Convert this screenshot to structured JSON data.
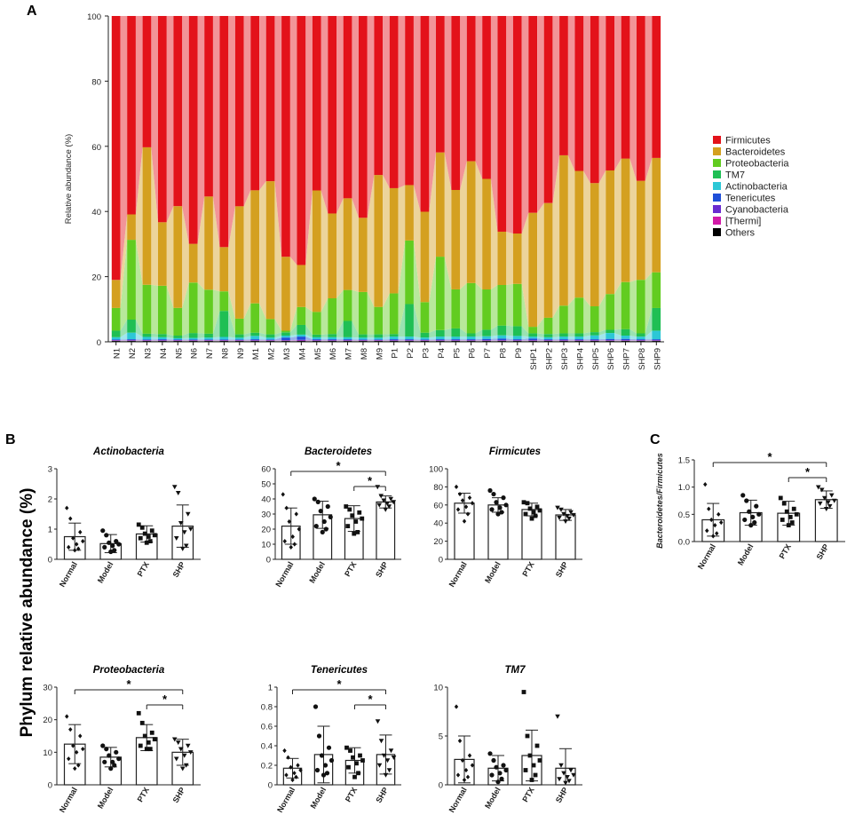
{
  "panel_labels": [
    "A",
    "B",
    "C"
  ],
  "legend": [
    {
      "name": "Firmicutes",
      "color": "#e3121a"
    },
    {
      "name": "Bacteroidetes",
      "color": "#d4a020"
    },
    {
      "name": "Proteobacteria",
      "color": "#62cc20"
    },
    {
      "name": "TM7",
      "color": "#1fbf54"
    },
    {
      "name": "Actinobacteria",
      "color": "#2cc7d6"
    },
    {
      "name": "Tenericutes",
      "color": "#1f4fd8"
    },
    {
      "name": "Cyanobacteria",
      "color": "#6a2bd0"
    },
    {
      "name": "[Thermi]",
      "color": "#d21aa8"
    },
    {
      "name": "Others",
      "color": "#000000"
    }
  ],
  "chart_data": [
    {
      "panel": "A",
      "type": "bar",
      "stacked": true,
      "ylabel": "Relative abundance (%)",
      "ylim": [
        0,
        100
      ],
      "yticks": [
        0,
        20,
        40,
        60,
        80,
        100
      ],
      "categories": [
        "N1",
        "N2",
        "N3",
        "N4",
        "N5",
        "N6",
        "N7",
        "N8",
        "N9",
        "M1",
        "M2",
        "M3",
        "M4",
        "M5",
        "M6",
        "M7",
        "M8",
        "M9",
        "P1",
        "P2",
        "P3",
        "P4",
        "P5",
        "P6",
        "P7",
        "P8",
        "P9",
        "SHP1",
        "SHP2",
        "SHP3",
        "SHP4",
        "SHP5",
        "SHP6",
        "SHP7",
        "SHP8",
        "SHP9"
      ],
      "series": [
        {
          "name": "Others",
          "values": [
            0.3,
            0.3,
            0.3,
            0.3,
            0.3,
            0.3,
            0.3,
            0.3,
            0.3,
            0.3,
            0.3,
            0.3,
            0.3,
            0.3,
            0.3,
            0.3,
            0.3,
            0.3,
            0.3,
            0.3,
            0.3,
            0.3,
            0.3,
            0.3,
            0.3,
            0.3,
            0.3,
            0.3,
            0.3,
            0.3,
            0.3,
            0.3,
            0.3,
            0.3,
            0.3,
            0.3
          ]
        },
        {
          "name": "[Thermi]",
          "values": [
            0.1,
            0.1,
            0.1,
            0.1,
            0.1,
            0.1,
            0.1,
            0.1,
            0.1,
            0.1,
            0.1,
            0.1,
            0.1,
            0.1,
            0.1,
            0.1,
            0.1,
            0.1,
            0.1,
            0.1,
            0.1,
            0.1,
            0.1,
            0.1,
            0.1,
            0.1,
            0.1,
            0.1,
            0.1,
            0.1,
            0.1,
            0.1,
            0.1,
            0.1,
            0.1,
            0.1
          ]
        },
        {
          "name": "Cyanobacteria",
          "values": [
            0.1,
            0.1,
            0.1,
            0.1,
            0.1,
            0.1,
            0.1,
            0.1,
            0.1,
            0.1,
            0.1,
            0.1,
            0.2,
            0.1,
            0.1,
            0.1,
            0.1,
            0.1,
            0.1,
            0.1,
            0.1,
            0.1,
            0.1,
            0.1,
            0.1,
            0.1,
            0.1,
            0.1,
            0.1,
            0.1,
            0.1,
            0.1,
            0.1,
            0.1,
            0.1,
            0.1
          ]
        },
        {
          "name": "Tenericutes",
          "values": [
            0.2,
            0.3,
            0.2,
            0.3,
            0.2,
            0.2,
            0.2,
            0.2,
            0.2,
            0.3,
            0.2,
            0.8,
            1.0,
            0.3,
            0.3,
            0.3,
            0.2,
            0.2,
            0.3,
            0.3,
            0.2,
            0.3,
            0.3,
            0.3,
            0.4,
            0.5,
            0.3,
            0.5,
            0.3,
            0.3,
            0.3,
            0.3,
            0.4,
            0.4,
            0.3,
            0.3
          ]
        },
        {
          "name": "Actinobacteria",
          "values": [
            0.7,
            2.0,
            0.8,
            0.6,
            0.4,
            0.5,
            0.6,
            0.8,
            0.6,
            1.0,
            0.6,
            0.6,
            0.6,
            0.6,
            0.6,
            0.6,
            0.6,
            0.6,
            0.8,
            0.8,
            0.6,
            0.8,
            0.8,
            0.8,
            0.8,
            1.0,
            1.0,
            0.6,
            0.6,
            0.8,
            0.8,
            1.2,
            1.8,
            1.0,
            0.8,
            2.6
          ]
        },
        {
          "name": "TM7",
          "values": [
            2.0,
            4.0,
            1.0,
            1.0,
            0.8,
            1.5,
            1.2,
            8.0,
            1.0,
            1.0,
            1.0,
            1.0,
            3.0,
            0.8,
            1.0,
            5.0,
            1.0,
            1.0,
            0.8,
            10.0,
            1.5,
            2.0,
            2.5,
            1.0,
            2.0,
            3.0,
            3.0,
            1.0,
            1.0,
            1.0,
            1.0,
            1.0,
            1.0,
            2.0,
            1.0,
            7.0
          ]
        },
        {
          "name": "Proteobacteria",
          "values": [
            7.0,
            24.5,
            15.0,
            14.8,
            8.5,
            15.5,
            13.5,
            6.0,
            4.8,
            9.0,
            4.7,
            0.5,
            5.5,
            7.0,
            11.0,
            9.5,
            13.0,
            8.4,
            12.5,
            19.5,
            9.4,
            22.6,
            12.0,
            15.5,
            12.4,
            12.5,
            13.0,
            2.0,
            5.0,
            8.5,
            11.0,
            8.0,
            11.0,
            14.5,
            16.5,
            11.0
          ]
        },
        {
          "name": "Bacteroidetes",
          "values": [
            8.6,
            7.8,
            42.2,
            19.5,
            31.2,
            11.9,
            28.6,
            13.6,
            34.5,
            34.7,
            42.3,
            22.7,
            12.9,
            37.4,
            26.1,
            28.1,
            22.8,
            40.5,
            32.4,
            17.0,
            27.8,
            32.1,
            30.5,
            37.5,
            34.0,
            16.4,
            15.5,
            35.0,
            35.2,
            46.2,
            39.0,
            38.2,
            38.0,
            38.0,
            30.5,
            35.2
          ]
        },
        {
          "name": "Firmicutes",
          "values": [
            81.0,
            60.9,
            40.3,
            63.3,
            58.3,
            70.0,
            55.4,
            71.0,
            58.4,
            53.5,
            50.7,
            73.9,
            76.5,
            53.7,
            60.8,
            55.9,
            62.0,
            48.8,
            53.0,
            51.9,
            60.2,
            42.0,
            53.4,
            44.7,
            50.1,
            66.4,
            66.9,
            60.4,
            57.4,
            42.8,
            47.7,
            51.8,
            47.5,
            43.9,
            50.8,
            43.7
          ]
        }
      ]
    },
    {
      "panel": "B",
      "type": "bar",
      "subtype": "bar-with-points",
      "ylabel": "Phylum relative abundance (%)",
      "groups": [
        "Normal",
        "Model",
        "PTX",
        "SHP"
      ],
      "subplots": [
        {
          "title": "Actinobacteria",
          "ylim": [
            0,
            3
          ],
          "yticks": [
            0,
            1,
            2,
            3
          ],
          "means": [
            0.75,
            0.52,
            0.84,
            1.1
          ],
          "sd": [
            0.45,
            0.3,
            0.27,
            0.7
          ],
          "points": [
            [
              1.7,
              1.35,
              0.9,
              0.7,
              0.6,
              0.5,
              0.4,
              0.35,
              0.3
            ],
            [
              0.95,
              0.8,
              0.6,
              0.55,
              0.5,
              0.45,
              0.4,
              0.3,
              0.25
            ],
            [
              1.15,
              1.05,
              0.95,
              0.85,
              0.8,
              0.75,
              0.7,
              0.6,
              0.55
            ],
            [
              2.4,
              2.2,
              1.5,
              1.2,
              1.0,
              0.9,
              0.7,
              0.45,
              0.35
            ]
          ],
          "significance": []
        },
        {
          "title": "Bacteroidetes",
          "ylim": [
            0,
            60
          ],
          "yticks": [
            0,
            10,
            20,
            30,
            40,
            50,
            60
          ],
          "means": [
            22,
            29.5,
            27,
            38
          ],
          "sd": [
            12,
            9,
            8.5,
            4
          ],
          "points": [
            [
              43,
              34,
              30,
              25,
              20,
              15,
              12,
              10,
              8
            ],
            [
              40,
              38,
              35,
              32,
              28,
              25,
              22,
              20,
              18
            ],
            [
              35,
              33,
              31,
              29,
              27,
              25,
              22,
              18,
              17
            ],
            [
              48,
              42,
              40,
              39,
              38,
              37,
              36,
              35,
              33
            ]
          ],
          "significance": [
            {
              "from": "Normal",
              "to": "SHP",
              "label": "*"
            },
            {
              "from": "PTX",
              "to": "SHP",
              "label": "*"
            }
          ]
        },
        {
          "title": "Firmicutes",
          "ylim": [
            0,
            100
          ],
          "yticks": [
            0,
            20,
            40,
            60,
            80,
            100
          ],
          "means": [
            62,
            60,
            55,
            49
          ],
          "sd": [
            11,
            8,
            7,
            6
          ],
          "points": [
            [
              80,
              72,
              68,
              65,
              62,
              58,
              55,
              50,
              42
            ],
            [
              76,
              72,
              68,
              63,
              60,
              57,
              55,
              52,
              50
            ],
            [
              63,
              62,
              58,
              56,
              54,
              52,
              50,
              48,
              45
            ],
            [
              57,
              55,
              52,
              50,
              49,
              48,
              46,
              45,
              42
            ]
          ],
          "significance": []
        },
        {
          "title": "Proteobacteria",
          "ylim": [
            0,
            30
          ],
          "yticks": [
            0,
            10,
            20,
            30
          ],
          "means": [
            12.5,
            8.5,
            14.5,
            10
          ],
          "sd": [
            6,
            3,
            4,
            4
          ],
          "points": [
            [
              21,
              17,
              15,
              12,
              11,
              10,
              8,
              6,
              5
            ],
            [
              12,
              11,
              10,
              9,
              8,
              7,
              7,
              6,
              5
            ],
            [
              22,
              19,
              16,
              15,
              14,
              13,
              12,
              11,
              11
            ],
            [
              14,
              13,
              12,
              11,
              10,
              9,
              8,
              6,
              5
            ]
          ],
          "significance": [
            {
              "from": "Normal",
              "to": "SHP",
              "label": "*"
            },
            {
              "from": "PTX",
              "to": "SHP",
              "label": "*"
            }
          ]
        },
        {
          "title": "Tenericutes",
          "ylim": [
            0,
            1.0
          ],
          "yticks": [
            0,
            0.2,
            0.4,
            0.6,
            0.8,
            1.0
          ],
          "means": [
            0.17,
            0.31,
            0.25,
            0.31
          ],
          "sd": [
            0.1,
            0.29,
            0.13,
            0.2
          ],
          "points": [
            [
              0.35,
              0.28,
              0.2,
              0.18,
              0.15,
              0.12,
              0.1,
              0.08,
              0.05
            ],
            [
              0.8,
              0.5,
              0.38,
              0.3,
              0.25,
              0.2,
              0.15,
              0.12,
              0.1
            ],
            [
              0.38,
              0.35,
              0.3,
              0.28,
              0.25,
              0.22,
              0.18,
              0.12,
              0.08
            ],
            [
              0.65,
              0.45,
              0.35,
              0.3,
              0.28,
              0.25,
              0.2,
              0.15,
              0.1
            ]
          ],
          "significance": [
            {
              "from": "Normal",
              "to": "SHP",
              "label": "*"
            },
            {
              "from": "PTX",
              "to": "SHP",
              "label": "*"
            }
          ]
        },
        {
          "title": "TM7",
          "ylim": [
            0,
            10
          ],
          "yticks": [
            0,
            5,
            10
          ],
          "means": [
            2.6,
            1.7,
            3.0,
            1.7
          ],
          "sd": [
            2.4,
            1.3,
            2.6,
            2.0
          ],
          "points": [
            [
              8.0,
              4.5,
              3.0,
              2.5,
              2.0,
              1.5,
              1.0,
              0.8,
              0.5
            ],
            [
              3.2,
              2.5,
              2.0,
              1.8,
              1.5,
              1.2,
              1.0,
              0.6,
              0.3
            ],
            [
              9.5,
              5.0,
              4.0,
              3.0,
              2.5,
              2.0,
              1.5,
              1.0,
              0.5
            ],
            [
              7.0,
              2.0,
              1.5,
              1.2,
              1.0,
              0.8,
              0.6,
              0.4,
              0.2
            ]
          ],
          "significance": []
        }
      ]
    },
    {
      "panel": "C",
      "type": "bar",
      "subtype": "bar-with-points",
      "ylabel": "Bacteroidetes/Firmicutes",
      "groups": [
        "Normal",
        "Model",
        "PTX",
        "SHP"
      ],
      "ylim": [
        0,
        1.5
      ],
      "yticks": [
        0.0,
        0.5,
        1.0,
        1.5
      ],
      "means": [
        0.4,
        0.53,
        0.52,
        0.77
      ],
      "sd": [
        0.3,
        0.23,
        0.22,
        0.16
      ],
      "points": [
        [
          1.05,
          0.6,
          0.5,
          0.4,
          0.35,
          0.3,
          0.2,
          0.15,
          0.1
        ],
        [
          0.85,
          0.75,
          0.65,
          0.55,
          0.5,
          0.45,
          0.4,
          0.35,
          0.3
        ],
        [
          0.8,
          0.7,
          0.6,
          0.55,
          0.5,
          0.45,
          0.4,
          0.35,
          0.3
        ],
        [
          1.0,
          0.95,
          0.85,
          0.8,
          0.75,
          0.72,
          0.7,
          0.65,
          0.6
        ]
      ],
      "significance": [
        {
          "from": "Normal",
          "to": "SHP",
          "label": "*"
        },
        {
          "from": "PTX",
          "to": "SHP",
          "label": "*"
        }
      ]
    }
  ]
}
